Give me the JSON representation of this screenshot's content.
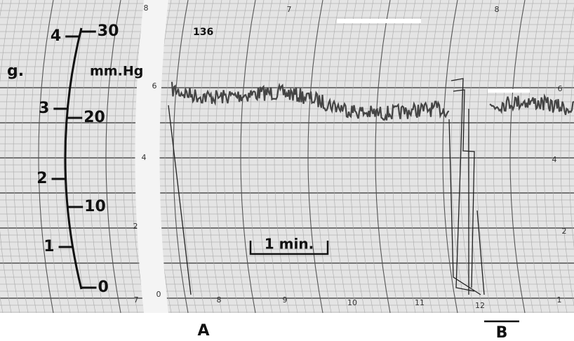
{
  "figure": {
    "scale": {
      "left_unit": "g.",
      "right_unit": "mm.Hg",
      "left_labels": [
        "4",
        "3",
        "2",
        "1"
      ],
      "right_labels": [
        "30",
        "20",
        "10",
        "0"
      ]
    },
    "recording_number": "136",
    "time_bar": "1 min.",
    "paper_labels": {
      "top": [
        "8",
        "7",
        "8"
      ],
      "left": [
        "6",
        "4",
        "2",
        "0"
      ],
      "right": [
        "6",
        "4",
        "2"
      ],
      "bottom": [
        "7",
        "8",
        "9",
        "10",
        "11",
        "12",
        "1"
      ]
    },
    "panels": [
      "A",
      "B"
    ]
  }
}
